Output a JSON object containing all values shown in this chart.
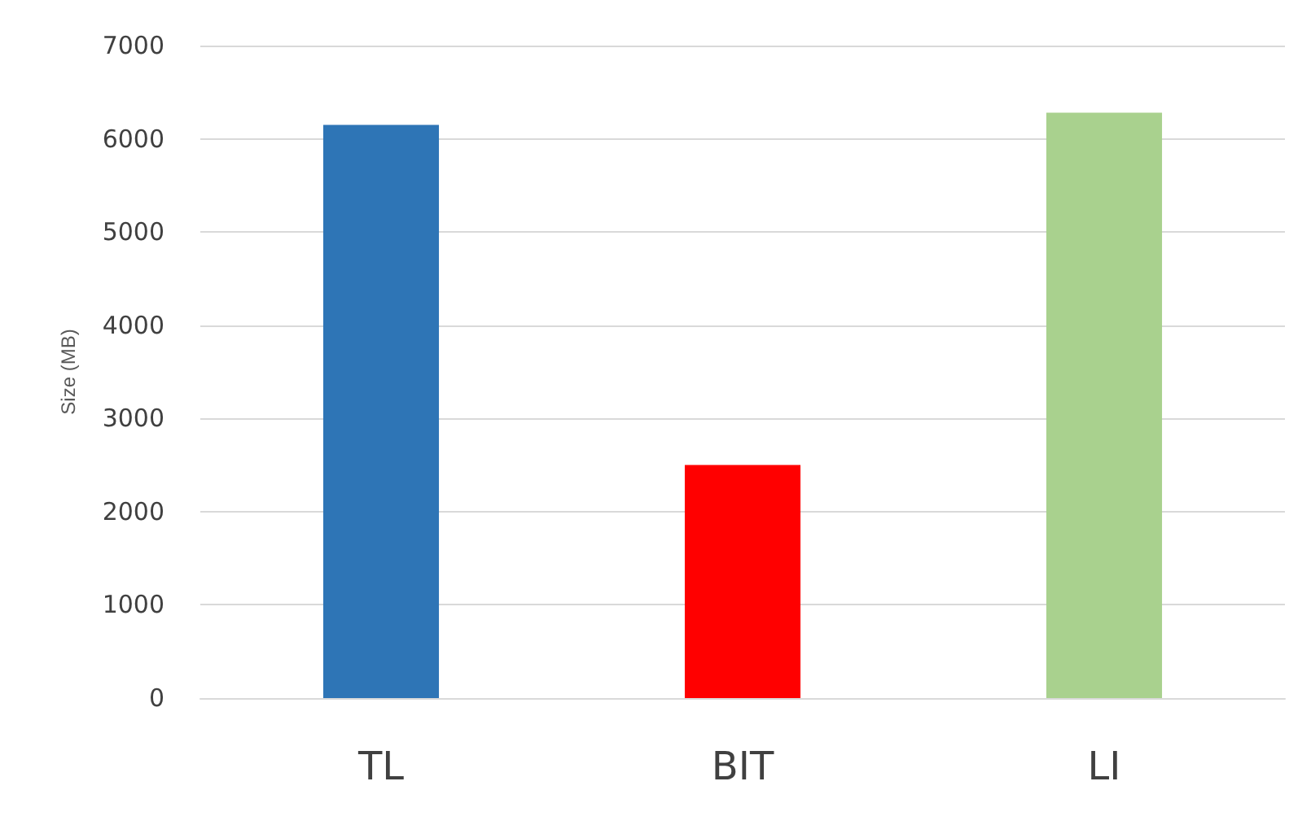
{
  "chart_data": {
    "type": "bar",
    "ylabel": "Size (MB)",
    "categories": [
      "TL",
      "BIT",
      "LI"
    ],
    "values": [
      6150,
      2500,
      6280
    ],
    "colors": [
      "#2e75b6",
      "#ff0000",
      "#a9d18e"
    ],
    "ylim": [
      0,
      7000
    ],
    "yticks": [
      0,
      1000,
      2000,
      3000,
      4000,
      5000,
      6000,
      7000
    ],
    "grid": "y"
  }
}
